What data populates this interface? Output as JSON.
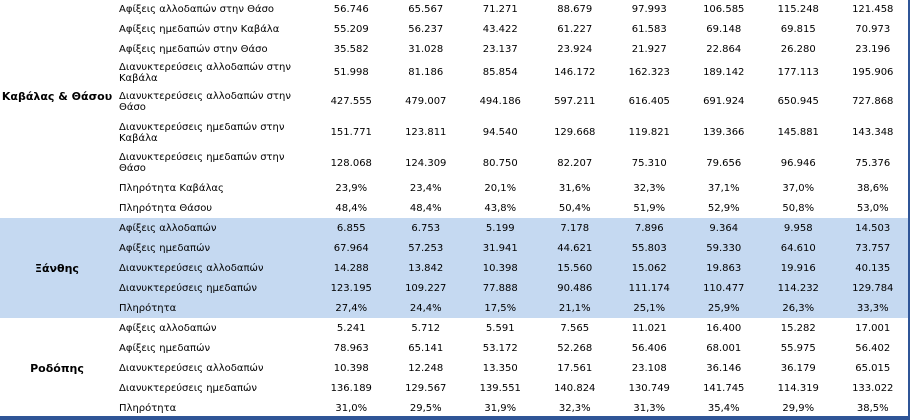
{
  "regions": [
    {
      "name": "Καβάλας & Θάσου",
      "rows": [
        {
          "label": "Αφίξεις αλλοδαπών στην Θάσο",
          "values": [
            "56.746",
            "65.567",
            "71.271",
            "88.679",
            "97.993",
            "106.585",
            "115.248",
            "121.458"
          ]
        },
        {
          "label": "Αφίξεις ημεδαπών στην Καβάλα",
          "values": [
            "55.209",
            "56.237",
            "43.422",
            "61.227",
            "61.583",
            "69.148",
            "69.815",
            "70.973"
          ]
        },
        {
          "label": "Αφίξεις ημεδαπών  στην Θάσο",
          "values": [
            "35.582",
            "31.028",
            "23.137",
            "23.924",
            "21.927",
            "22.864",
            "26.280",
            "23.196"
          ]
        },
        {
          "label": "Διανυκτερεύσεις αλλοδαπών στην Καβάλα",
          "values": [
            "51.998",
            "81.186",
            "85.854",
            "146.172",
            "162.323",
            "189.142",
            "177.113",
            "195.906"
          ]
        },
        {
          "label": "Διανυκτερεύσεις αλλοδαπών στην Θάσο",
          "values": [
            "427.555",
            "479.007",
            "494.186",
            "597.211",
            "616.405",
            "691.924",
            "650.945",
            "727.868"
          ]
        },
        {
          "label": "Διανυκτερεύσεις ημεδαπών στην Καβάλα",
          "values": [
            "151.771",
            "123.811",
            "94.540",
            "129.668",
            "119.821",
            "139.366",
            "145.881",
            "143.348"
          ]
        },
        {
          "label": "Διανυκτερεύσεις ημεδαπών στην Θάσο",
          "values": [
            "128.068",
            "124.309",
            "80.750",
            "82.207",
            "75.310",
            "79.656",
            "96.946",
            "75.376"
          ]
        },
        {
          "label": "Πληρότητα Καβάλας",
          "values": [
            "23,9%",
            "23,4%",
            "20,1%",
            "31,6%",
            "32,3%",
            "37,1%",
            "37,0%",
            "38,6%"
          ]
        },
        {
          "label": "Πληρότητα Θάσου",
          "values": [
            "48,4%",
            "48,4%",
            "43,8%",
            "50,4%",
            "51,9%",
            "52,9%",
            "50,8%",
            "53,0%"
          ]
        }
      ]
    },
    {
      "name": "Ξάνθης",
      "rows": [
        {
          "label": "Αφίξεις αλλοδαπών",
          "values": [
            "6.855",
            "6.753",
            "5.199",
            "7.178",
            "7.896",
            "9.364",
            "9.958",
            "14.503"
          ]
        },
        {
          "label": "Αφίξεις ημεδαπών",
          "values": [
            "67.964",
            "57.253",
            "31.941",
            "44.621",
            "55.803",
            "59.330",
            "64.610",
            "73.757"
          ]
        },
        {
          "label": "Διανυκτερεύσεις αλλοδαπών",
          "values": [
            "14.288",
            "13.842",
            "10.398",
            "15.560",
            "15.062",
            "19.863",
            "19.916",
            "40.135"
          ]
        },
        {
          "label": "Διανυκτερεύσεις ημεδαπών",
          "values": [
            "123.195",
            "109.227",
            "77.888",
            "90.486",
            "111.174",
            "110.477",
            "114.232",
            "129.784"
          ]
        },
        {
          "label": "Πληρότητα",
          "values": [
            "27,4%",
            "24,4%",
            "17,5%",
            "21,1%",
            "25,1%",
            "25,9%",
            "26,3%",
            "33,3%"
          ]
        }
      ]
    },
    {
      "name": "Ροδόπης",
      "rows": [
        {
          "label": "Αφίξεις αλλοδαπών",
          "values": [
            "5.241",
            "5.712",
            "5.591",
            "7.565",
            "11.021",
            "16.400",
            "15.282",
            "17.001"
          ]
        },
        {
          "label": "Αφίξεις ημεδαπών",
          "values": [
            "78.963",
            "65.141",
            "53.172",
            "52.268",
            "56.406",
            "68.001",
            "55.975",
            "56.402"
          ]
        },
        {
          "label": "Διανυκτερεύσεις αλλοδαπών",
          "values": [
            "10.398",
            "12.248",
            "13.350",
            "17.561",
            "23.108",
            "36.146",
            "36.179",
            "65.015"
          ]
        },
        {
          "label": "Διανυκτερεύσεις ημεδαπών",
          "values": [
            "136.189",
            "129.567",
            "139.551",
            "140.824",
            "130.749",
            "141.745",
            "114.319",
            "133.022"
          ]
        },
        {
          "label": "Πληρότητα",
          "values": [
            "31,0%",
            "29,5%",
            "31,9%",
            "32,3%",
            "31,3%",
            "35,4%",
            "29,9%",
            "38,5%"
          ]
        }
      ]
    }
  ],
  "colors": {
    "highlight_row": "#c5d9f1",
    "border_accent": "#2f5597"
  }
}
